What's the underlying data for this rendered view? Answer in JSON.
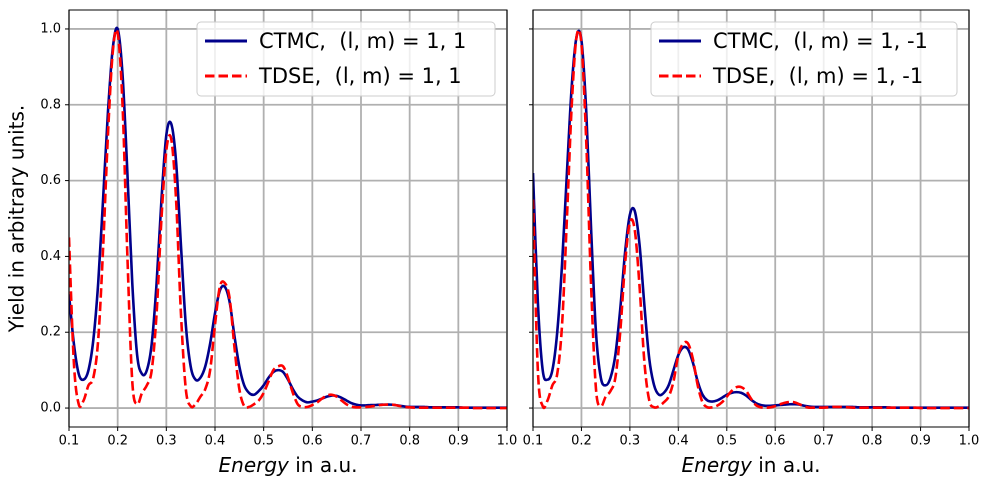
{
  "chart_data": [
    {
      "type": "line",
      "ylabel": "Yield in arbitrary units.",
      "xlabel": [
        "Energy",
        " in a.u."
      ],
      "x": [
        0.1,
        0.11,
        0.12,
        0.13,
        0.14,
        0.15,
        0.16,
        0.17,
        0.18,
        0.19,
        0.2,
        0.21,
        0.22,
        0.23,
        0.24,
        0.25,
        0.26,
        0.27,
        0.28,
        0.29,
        0.3,
        0.31,
        0.32,
        0.33,
        0.34,
        0.35,
        0.36,
        0.37,
        0.38,
        0.39,
        0.4,
        0.41,
        0.42,
        0.43,
        0.44,
        0.45,
        0.46,
        0.47,
        0.48,
        0.49,
        0.5,
        0.51,
        0.52,
        0.53,
        0.54,
        0.55,
        0.56,
        0.57,
        0.58,
        0.59,
        0.6,
        0.61,
        0.62,
        0.63,
        0.64,
        0.65,
        0.66,
        0.67,
        0.68,
        0.69,
        0.7,
        0.71,
        0.72,
        0.73,
        0.74,
        0.75,
        0.76,
        0.77,
        0.78,
        0.79,
        0.8,
        0.81,
        0.82,
        0.83,
        0.84,
        0.85,
        0.86,
        0.87,
        0.88,
        0.89,
        0.9,
        0.91,
        0.92,
        0.93,
        0.94,
        0.95,
        0.96,
        0.97,
        0.98,
        0.99,
        1.0
      ],
      "series": [
        {
          "name": "CTMC,  (l, m) = 1, 1",
          "color": "#00008b",
          "dash": false,
          "values": [
            0.3,
            0.17,
            0.09,
            0.075,
            0.1,
            0.18,
            0.33,
            0.55,
            0.78,
            0.95,
            1.0,
            0.88,
            0.62,
            0.33,
            0.14,
            0.09,
            0.1,
            0.17,
            0.33,
            0.55,
            0.72,
            0.75,
            0.65,
            0.43,
            0.22,
            0.11,
            0.075,
            0.08,
            0.11,
            0.17,
            0.25,
            0.31,
            0.32,
            0.28,
            0.19,
            0.11,
            0.06,
            0.04,
            0.035,
            0.045,
            0.06,
            0.08,
            0.095,
            0.1,
            0.095,
            0.075,
            0.05,
            0.03,
            0.02,
            0.015,
            0.017,
            0.02,
            0.025,
            0.03,
            0.033,
            0.032,
            0.027,
            0.02,
            0.013,
            0.009,
            0.007,
            0.007,
            0.008,
            0.008,
            0.009,
            0.009,
            0.009,
            0.008,
            0.006,
            0.004,
            0.003,
            0.003,
            0.003,
            0.003,
            0.002,
            0.002,
            0.002,
            0.002,
            0.002,
            0.002,
            0.002,
            0.001,
            0.001,
            0.001,
            0.001,
            0.001,
            0.001,
            0.001,
            0.001,
            0.001,
            0.001
          ]
        },
        {
          "name": "TDSE,  (l, m) = 1, 1",
          "color": "#ff0000",
          "dash": true,
          "values": [
            0.45,
            0.12,
            0.01,
            0.02,
            0.06,
            0.08,
            0.18,
            0.42,
            0.72,
            0.94,
            0.99,
            0.8,
            0.4,
            0.07,
            0.01,
            0.04,
            0.06,
            0.1,
            0.25,
            0.5,
            0.68,
            0.71,
            0.55,
            0.25,
            0.05,
            0.005,
            0.01,
            0.03,
            0.05,
            0.1,
            0.22,
            0.32,
            0.33,
            0.29,
            0.16,
            0.05,
            0.005,
            0.003,
            0.01,
            0.02,
            0.04,
            0.07,
            0.1,
            0.11,
            0.11,
            0.08,
            0.04,
            0.01,
            0.003,
            0.003,
            0.008,
            0.015,
            0.025,
            0.033,
            0.035,
            0.03,
            0.02,
            0.01,
            0.004,
            0.002,
            0.002,
            0.003,
            0.004,
            0.006,
            0.008,
            0.009,
            0.009,
            0.008,
            0.005,
            0.003,
            0.002,
            0.001,
            0.001,
            0.001,
            0.001,
            0.001,
            0.001,
            0.001,
            0.001,
            0.001,
            0.001,
            0.001,
            0.001,
            0,
            0,
            0,
            0,
            0,
            0,
            0,
            0
          ]
        }
      ],
      "xlim": [
        0.1,
        1.0
      ],
      "xticks": [
        0.1,
        0.2,
        0.3,
        0.4,
        0.5,
        0.6,
        0.7,
        0.8,
        0.9,
        {
          "value": 1,
          "label": "1.0"
        }
      ],
      "ylim": [
        -0.05,
        1.05
      ],
      "yticks": [
        {
          "value": 0,
          "label": "0.0"
        },
        0.2,
        0.4,
        0.6,
        0.8,
        {
          "value": 1,
          "label": "1.0"
        }
      ],
      "ytick_labels": true,
      "grid": true,
      "legend": "upper right"
    },
    {
      "type": "line",
      "xlabel": [
        "Energy",
        " in a.u."
      ],
      "x": [
        0.1,
        0.11,
        0.12,
        0.13,
        0.14,
        0.15,
        0.16,
        0.17,
        0.18,
        0.19,
        0.2,
        0.21,
        0.22,
        0.23,
        0.24,
        0.25,
        0.26,
        0.27,
        0.28,
        0.29,
        0.3,
        0.31,
        0.32,
        0.33,
        0.34,
        0.35,
        0.36,
        0.37,
        0.38,
        0.39,
        0.4,
        0.41,
        0.42,
        0.43,
        0.44,
        0.45,
        0.46,
        0.47,
        0.48,
        0.49,
        0.5,
        0.51,
        0.52,
        0.53,
        0.54,
        0.55,
        0.56,
        0.57,
        0.58,
        0.59,
        0.6,
        0.61,
        0.62,
        0.63,
        0.64,
        0.65,
        0.66,
        0.67,
        0.68,
        0.69,
        0.7,
        0.71,
        0.72,
        0.73,
        0.74,
        0.75,
        0.76,
        0.77,
        0.78,
        0.79,
        0.8,
        0.81,
        0.82,
        0.83,
        0.84,
        0.85,
        0.86,
        0.87,
        0.88,
        0.89,
        0.9,
        0.91,
        0.92,
        0.93,
        0.94,
        0.95,
        0.96,
        0.97,
        0.98,
        0.99,
        1.0
      ],
      "series": [
        {
          "name": "CTMC,  (l, m) = 1, -1",
          "color": "#00008b",
          "dash": false,
          "values": [
            0.62,
            0.28,
            0.1,
            0.075,
            0.1,
            0.2,
            0.38,
            0.62,
            0.85,
            0.98,
            0.97,
            0.78,
            0.47,
            0.2,
            0.08,
            0.06,
            0.08,
            0.14,
            0.26,
            0.41,
            0.51,
            0.52,
            0.43,
            0.27,
            0.13,
            0.06,
            0.035,
            0.04,
            0.06,
            0.1,
            0.14,
            0.16,
            0.155,
            0.12,
            0.07,
            0.035,
            0.02,
            0.017,
            0.02,
            0.027,
            0.035,
            0.04,
            0.042,
            0.04,
            0.033,
            0.022,
            0.013,
            0.008,
            0.006,
            0.006,
            0.007,
            0.008,
            0.009,
            0.01,
            0.01,
            0.009,
            0.006,
            0.004,
            0.003,
            0.003,
            0.003,
            0.003,
            0.003,
            0.003,
            0.003,
            0.003,
            0.003,
            0.002,
            0.002,
            0.002,
            0.002,
            0.002,
            0.002,
            0.002,
            0.001,
            0.001,
            0.001,
            0.001,
            0.001,
            0.001,
            0.001,
            0.001,
            0.001,
            0.001,
            0.001,
            0.001,
            0.001,
            0.001,
            0.001,
            0.001,
            0.001
          ]
        },
        {
          "name": "TDSE,  (l, m) = 1, -1",
          "color": "#ff0000",
          "dash": true,
          "values": [
            0.55,
            0.1,
            0.005,
            0.02,
            0.06,
            0.09,
            0.22,
            0.5,
            0.8,
            0.98,
            0.96,
            0.7,
            0.32,
            0.05,
            0.005,
            0.03,
            0.045,
            0.08,
            0.2,
            0.38,
            0.49,
            0.47,
            0.32,
            0.12,
            0.02,
            0.002,
            0.005,
            0.015,
            0.03,
            0.07,
            0.14,
            0.17,
            0.17,
            0.13,
            0.06,
            0.015,
            0.002,
            0.002,
            0.006,
            0.015,
            0.03,
            0.045,
            0.055,
            0.055,
            0.045,
            0.025,
            0.008,
            0.002,
            0.001,
            0.002,
            0.005,
            0.01,
            0.014,
            0.016,
            0.015,
            0.01,
            0.004,
            0.001,
            0.001,
            0.001,
            0.001,
            0.002,
            0.003,
            0.003,
            0.003,
            0.002,
            0.001,
            0.001,
            0.001,
            0.001,
            0.001,
            0.001,
            0.001,
            0.001,
            0.001,
            0.001,
            0.001,
            0.001,
            0.001,
            0.001,
            0,
            0,
            0,
            0,
            0,
            0,
            0,
            0,
            0,
            0,
            0
          ]
        }
      ],
      "xlim": [
        0.1,
        1.0
      ],
      "xticks": [
        0.1,
        0.2,
        0.3,
        0.4,
        0.5,
        0.6,
        0.7,
        0.8,
        0.9,
        {
          "value": 1,
          "label": "1.0"
        }
      ],
      "ylim": [
        -0.05,
        1.05
      ],
      "yticks": [
        0,
        0.2,
        0.4,
        0.6,
        0.8,
        1
      ],
      "ytick_labels": false,
      "grid": true,
      "legend": "upper right"
    }
  ]
}
